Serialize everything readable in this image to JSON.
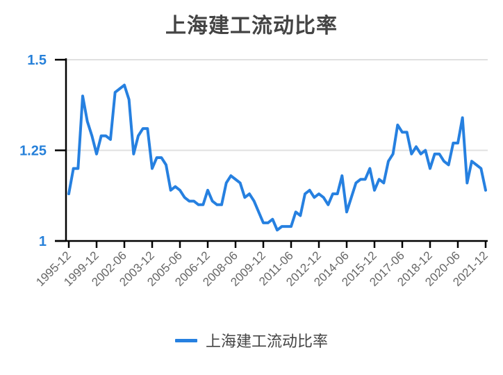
{
  "title": "上海建工流动比率",
  "legend": {
    "label": "上海建工流动比率",
    "color": "#2680e0"
  },
  "colors": {
    "line": "#2680e0",
    "ytick": "#2680d9",
    "grid": "#e0e0e0",
    "axis": "#000000"
  },
  "chart_data": {
    "type": "line",
    "title": "上海建工流动比率",
    "xlabel": "",
    "ylabel": "",
    "ylim": [
      1,
      1.5
    ],
    "yticks": [
      1,
      1.25,
      1.5
    ],
    "ytick_labels": [
      "1",
      "1.25",
      "1.5"
    ],
    "grid": "horizontal",
    "legend_position": "bottom",
    "x_tick_labels": [
      "1995-12",
      "1999-12",
      "2002-06",
      "2003-12",
      "2005-06",
      "2006-12",
      "2008-06",
      "2009-12",
      "2011-06",
      "2012-12",
      "2014-06",
      "2015-12",
      "2017-06",
      "2018-12",
      "2020-06",
      "2021-12"
    ],
    "x_tick_every_n_points": 6,
    "series": [
      {
        "name": "上海建工流动比率",
        "values": [
          1.13,
          1.2,
          1.2,
          1.4,
          1.33,
          1.29,
          1.24,
          1.29,
          1.29,
          1.28,
          1.41,
          1.42,
          1.43,
          1.39,
          1.24,
          1.29,
          1.31,
          1.31,
          1.2,
          1.23,
          1.23,
          1.21,
          1.14,
          1.15,
          1.14,
          1.12,
          1.11,
          1.11,
          1.1,
          1.1,
          1.14,
          1.11,
          1.1,
          1.1,
          1.16,
          1.18,
          1.17,
          1.16,
          1.12,
          1.13,
          1.11,
          1.08,
          1.05,
          1.05,
          1.06,
          1.03,
          1.04,
          1.04,
          1.04,
          1.08,
          1.07,
          1.13,
          1.14,
          1.12,
          1.13,
          1.12,
          1.1,
          1.13,
          1.13,
          1.18,
          1.08,
          1.12,
          1.16,
          1.17,
          1.17,
          1.2,
          1.14,
          1.17,
          1.16,
          1.22,
          1.24,
          1.32,
          1.3,
          1.3,
          1.24,
          1.26,
          1.24,
          1.25,
          1.2,
          1.24,
          1.24,
          1.22,
          1.21,
          1.27,
          1.27,
          1.34,
          1.16,
          1.22,
          1.21,
          1.2,
          1.14
        ]
      }
    ]
  }
}
